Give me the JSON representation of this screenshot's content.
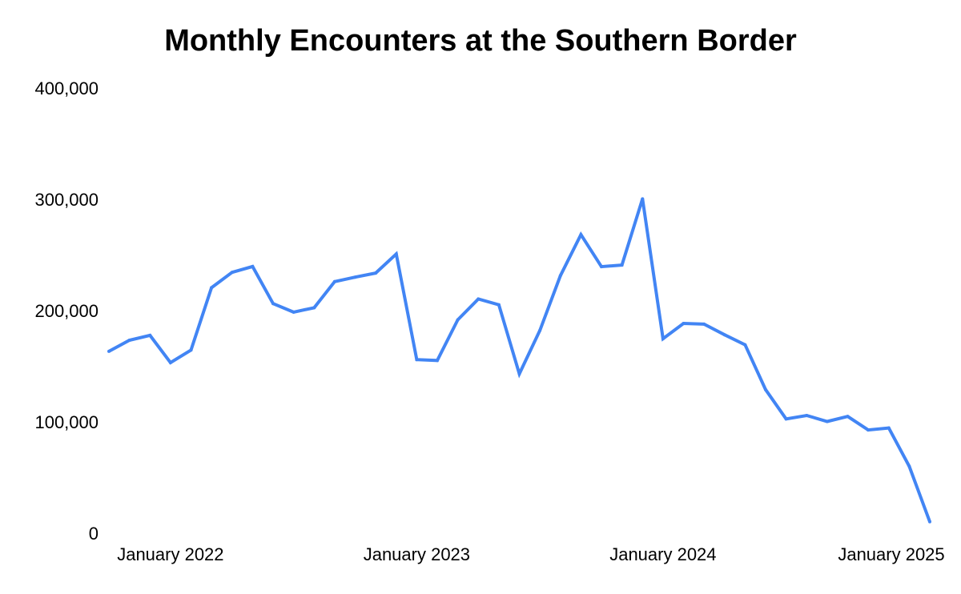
{
  "chart_data": {
    "type": "line",
    "title": "Monthly Encounters at the Southern Border",
    "xlabel": "",
    "ylabel": "",
    "ylim": [
      0,
      400000
    ],
    "yticks": [
      0,
      100000,
      200000,
      300000,
      400000
    ],
    "ytick_labels": [
      "0",
      "100,000",
      "200,000",
      "300,000",
      "400,000"
    ],
    "xlim": [
      "2021-10",
      "2025-02"
    ],
    "xticks": [
      "2022-01",
      "2023-01",
      "2024-01",
      "2025-01"
    ],
    "xtick_labels": [
      "January 2022",
      "January 2023",
      "January 2024",
      "January 2025"
    ],
    "grid": false,
    "legend": "none",
    "series": [
      {
        "color": "#4285F4",
        "x": [
          "2021-10",
          "2021-11",
          "2021-12",
          "2022-01",
          "2022-02",
          "2022-03",
          "2022-04",
          "2022-05",
          "2022-06",
          "2022-07",
          "2022-08",
          "2022-09",
          "2022-10",
          "2022-11",
          "2022-12",
          "2023-01",
          "2023-02",
          "2023-03",
          "2023-04",
          "2023-05",
          "2023-06",
          "2023-07",
          "2023-08",
          "2023-09",
          "2023-10",
          "2023-11",
          "2023-12",
          "2024-01",
          "2024-02",
          "2024-03",
          "2024-04",
          "2024-05",
          "2024-06",
          "2024-07",
          "2024-08",
          "2024-09",
          "2024-10",
          "2024-11",
          "2024-12",
          "2025-01",
          "2025-02"
        ],
        "values": [
          164800,
          174800,
          179200,
          154700,
          166000,
          222000,
          235800,
          241100,
          207800,
          200100,
          204000,
          227500,
          231500,
          235200,
          252300,
          157400,
          156600,
          193200,
          211900,
          206700,
          144600,
          183500,
          232900,
          269700,
          240900,
          242400,
          301900,
          176200,
          189900,
          189300,
          179700,
          170700,
          130400,
          104100,
          107200,
          101800,
          106300,
          94200,
          96000,
          61500,
          11700
        ]
      }
    ]
  }
}
